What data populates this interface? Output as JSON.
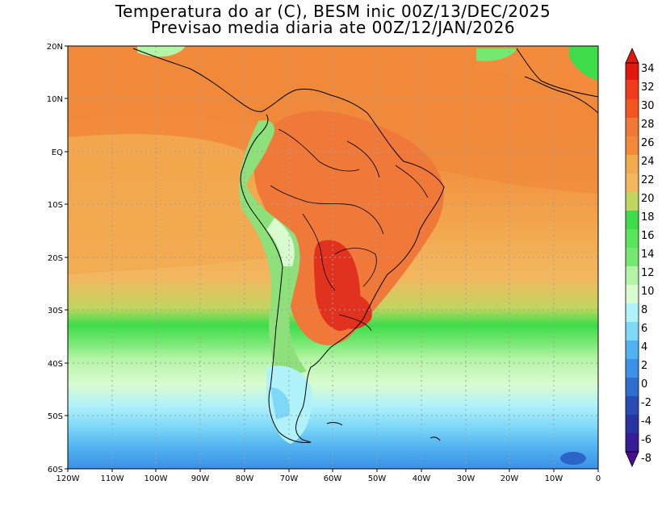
{
  "title_line1": "Temperatura do ar (C), BESM inic 00Z/13/DEC/2025",
  "title_line2": "Previsao media diaria ate 00Z/12/JAN/2026",
  "map": {
    "lon_range": [
      -120,
      0
    ],
    "lat_range": [
      -60,
      20
    ],
    "lat_labels": [
      "20N",
      "10N",
      "EQ",
      "10S",
      "20S",
      "30S",
      "40S",
      "50S",
      "60S"
    ],
    "lon_labels": [
      "120W",
      "110W",
      "100W",
      "90W",
      "80W",
      "70W",
      "60W",
      "50W",
      "40W",
      "30W",
      "20W",
      "10W",
      "0"
    ],
    "gridlines": true
  },
  "colorbar": {
    "labels": [
      "34",
      "32",
      "30",
      "28",
      "26",
      "24",
      "22",
      "20",
      "18",
      "16",
      "14",
      "12",
      "10",
      "8",
      "6",
      "4",
      "2",
      "0",
      "-2",
      "-4",
      "-6",
      "-8"
    ],
    "top_color": "#e0180c",
    "bottom_color": "#4a0e96"
  }
}
